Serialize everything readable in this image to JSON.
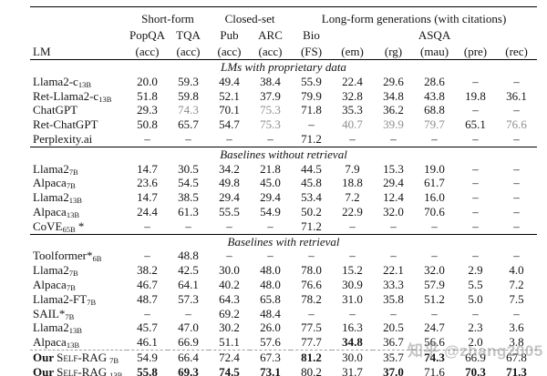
{
  "watermark": {
    "text": "知乎 @zhang2005"
  },
  "table": {
    "col_groups": [
      {
        "label": "",
        "span": 1
      },
      {
        "label": "Short-form",
        "span": 2
      },
      {
        "label": "Closed-set",
        "span": 2
      },
      {
        "label": "Long-form generations (with citations)",
        "span": 6
      }
    ],
    "col_names": [
      "",
      "PopQA",
      "TQA",
      "Pub",
      "ARC",
      "Bio",
      "",
      "",
      "ASQA",
      "",
      ""
    ],
    "col_units": [
      "LM",
      "(acc)",
      "(acc)",
      "(acc)",
      "(acc)",
      "(FS)",
      "(em)",
      "(rg)",
      "(mau)",
      "(pre)",
      "(rec)"
    ],
    "sections": [
      {
        "heading": "LMs with proprietary data",
        "rows": [
          {
            "label": {
              "name": "Llama2-c",
              "sub": "13B"
            },
            "cells": [
              "20.0",
              "59.3",
              "49.4",
              "38.4",
              "55.9",
              "22.4",
              "29.6",
              "28.6",
              "–",
              "–"
            ]
          },
          {
            "label": {
              "name": "Ret-Llama2-c",
              "sub": "13B"
            },
            "cells": [
              "51.8",
              "59.8",
              "52.1",
              "37.9",
              "79.9",
              "32.8",
              "34.8",
              "43.8",
              "19.8",
              "36.1"
            ]
          },
          {
            "label": {
              "name": "ChatGPT"
            },
            "cells": [
              "29.3",
              {
                "v": "74.3",
                "gray": true
              },
              "70.1",
              {
                "v": "75.3",
                "gray": true
              },
              "71.8",
              "35.3",
              "36.2",
              "68.8",
              "–",
              "–"
            ]
          },
          {
            "label": {
              "name": "Ret-ChatGPT"
            },
            "cells": [
              "50.8",
              "65.7",
              "54.7",
              {
                "v": "75.3",
                "gray": true
              },
              "–",
              {
                "v": "40.7",
                "gray": true
              },
              {
                "v": "39.9",
                "gray": true
              },
              {
                "v": "79.7",
                "gray": true
              },
              "65.1",
              {
                "v": "76.6",
                "gray": true
              }
            ]
          },
          {
            "label": {
              "name": "Perplexity.ai"
            },
            "cells": [
              "–",
              "–",
              "–",
              "–",
              "71.2",
              "–",
              "–",
              "–",
              "–",
              "–"
            ]
          }
        ]
      },
      {
        "heading": "Baselines without retrieval",
        "rows": [
          {
            "label": {
              "name": "Llama2",
              "sub": "7B"
            },
            "cells": [
              "14.7",
              "30.5",
              "34.2",
              "21.8",
              "44.5",
              "7.9",
              "15.3",
              "19.0",
              "–",
              "–"
            ]
          },
          {
            "label": {
              "name": "Alpaca",
              "sub": "7B"
            },
            "cells": [
              "23.6",
              "54.5",
              "49.8",
              "45.0",
              "45.8",
              "18.8",
              "29.4",
              "61.7",
              "–",
              "–"
            ]
          },
          {
            "label": {
              "name": "Llama2",
              "sub": "13B"
            },
            "cells": [
              "14.7",
              "38.5",
              "29.4",
              "29.4",
              "53.4",
              "7.2",
              "12.4",
              "16.0",
              "–",
              "–"
            ]
          },
          {
            "label": {
              "name": "Alpaca",
              "sub": "13B"
            },
            "cells": [
              "24.4",
              "61.3",
              "55.5",
              "54.9",
              "50.2",
              "22.9",
              "32.0",
              "70.6",
              "–",
              "–"
            ]
          },
          {
            "label": {
              "name": "CoVE",
              "sub": "65B",
              "suffix": "*"
            },
            "cells": [
              "–",
              "–",
              "–",
              "–",
              "71.2",
              "–",
              "–",
              "–",
              "–",
              "–"
            ]
          }
        ]
      },
      {
        "heading": "Baselines with retrieval",
        "rows": [
          {
            "label": {
              "name": "Toolformer*",
              "sub": "6B"
            },
            "cells": [
              "–",
              "48.8",
              "–",
              "–",
              "–",
              "–",
              "–",
              "–",
              "–",
              "–"
            ]
          },
          {
            "label": {
              "name": "Llama2",
              "sub": "7B"
            },
            "cells": [
              "38.2",
              "42.5",
              "30.0",
              "48.0",
              "78.0",
              "15.2",
              "22.1",
              "32.0",
              "2.9",
              "4.0"
            ]
          },
          {
            "label": {
              "name": "Alpaca",
              "sub": "7B"
            },
            "cells": [
              "46.7",
              "64.1",
              "40.2",
              "48.0",
              "76.6",
              "30.9",
              "33.3",
              "57.9",
              "5.5",
              "7.2"
            ]
          },
          {
            "label": {
              "name": "Llama2-FT",
              "sub": "7B"
            },
            "cells": [
              "48.7",
              "57.3",
              "64.3",
              "65.8",
              "78.2",
              "31.0",
              "35.8",
              "51.2",
              "5.0",
              "7.5"
            ]
          },
          {
            "label": {
              "name": "SAIL*",
              "sub": "7B"
            },
            "cells": [
              "–",
              "–",
              "69.2",
              "48.4",
              "–",
              "–",
              "–",
              "–",
              "–",
              "–"
            ]
          },
          {
            "label": {
              "name": "Llama2",
              "sub": "13B"
            },
            "cells": [
              "45.7",
              "47.0",
              "30.2",
              "26.0",
              "77.5",
              "16.3",
              "20.5",
              "24.7",
              "2.3",
              "3.6"
            ]
          },
          {
            "label": {
              "name": "Alpaca",
              "sub": "13B"
            },
            "cells": [
              "46.1",
              "66.9",
              "51.1",
              "57.6",
              "77.7",
              {
                "v": "34.8",
                "bold": true
              },
              "36.7",
              "56.6",
              "2.0",
              "3.8"
            ]
          },
          {
            "label": {
              "prefix": "Our",
              "name": "Self-RAG",
              "smallcaps": true,
              "sub": "7B"
            },
            "dashed_top": true,
            "cells": [
              "54.9",
              "66.4",
              "72.4",
              "67.3",
              {
                "v": "81.2",
                "bold": true
              },
              "30.0",
              "35.7",
              {
                "v": "74.3",
                "bold": true
              },
              "66.9",
              "67.8"
            ]
          },
          {
            "label": {
              "prefix": "Our",
              "name": "Self-RAG",
              "smallcaps": true,
              "sub": "13B"
            },
            "cells": [
              {
                "v": "55.8",
                "bold": true
              },
              {
                "v": "69.3",
                "bold": true
              },
              {
                "v": "74.5",
                "bold": true
              },
              {
                "v": "73.1",
                "bold": true
              },
              "80.2",
              "31.7",
              {
                "v": "37.0",
                "bold": true
              },
              "71.6",
              {
                "v": "70.3",
                "bold": true
              },
              {
                "v": "71.3",
                "bold": true
              }
            ]
          }
        ]
      }
    ]
  }
}
